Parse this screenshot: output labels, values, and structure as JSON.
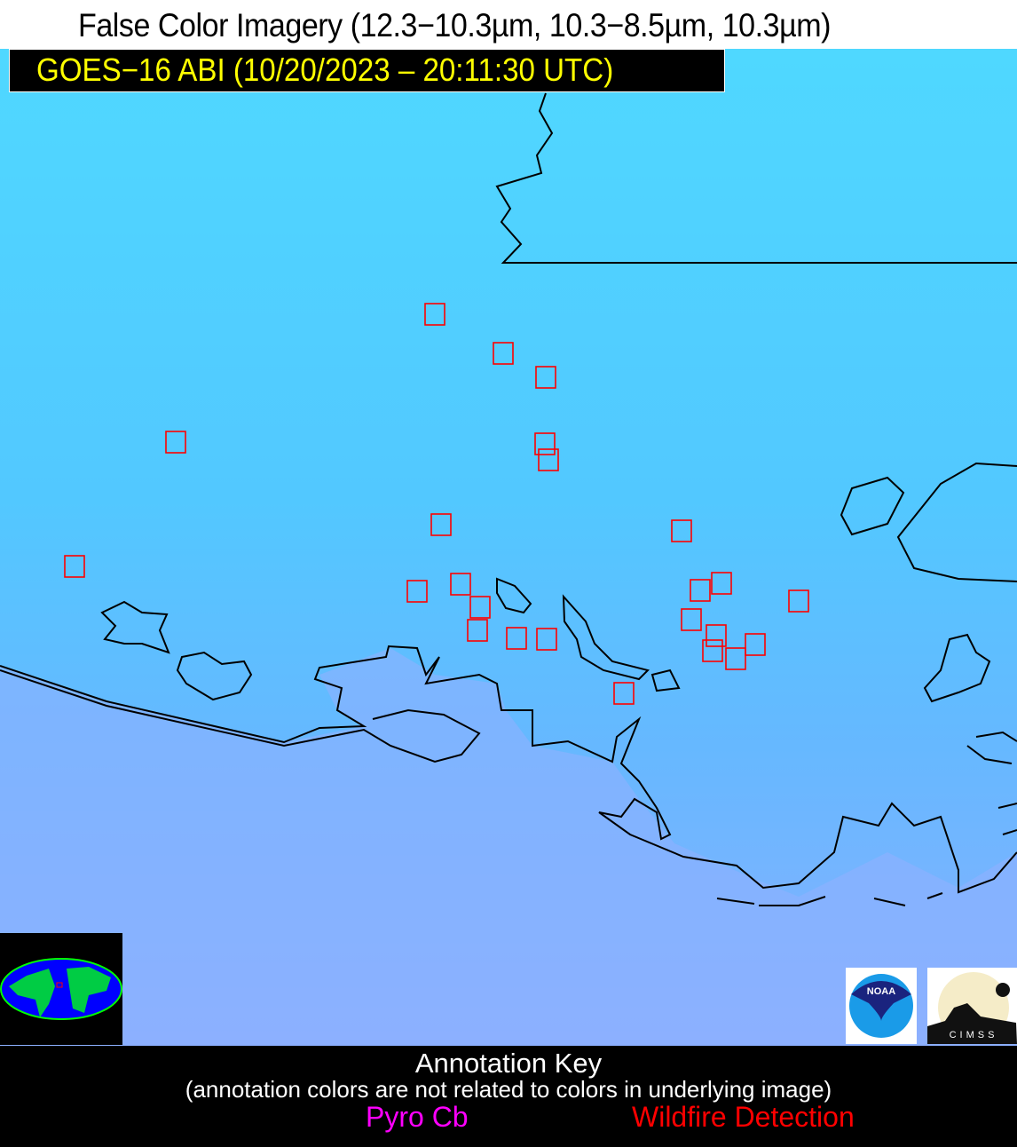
{
  "title": "False Color Imagery (12.3−10.3µm, 10.3−8.5µm, 10.3µm)",
  "satellite_label": "GOES−16 ABI (10/20/2023 – 20:11:30 UTC)",
  "logos": {
    "noaa": "NOAA",
    "cimss": "CIMSS"
  },
  "annotation_key": {
    "heading": "Annotation Key",
    "note": "(annotation colors are not related to colors in underlying image)",
    "pyro_cb": "Pyro Cb",
    "wildfire": "Wildfire Detection"
  },
  "colors": {
    "pyro_cb": "#ff00ff",
    "wildfire": "#ff0000",
    "land": "#55ccff",
    "water": "#88aaff",
    "label_text": "#ffff00"
  }
}
